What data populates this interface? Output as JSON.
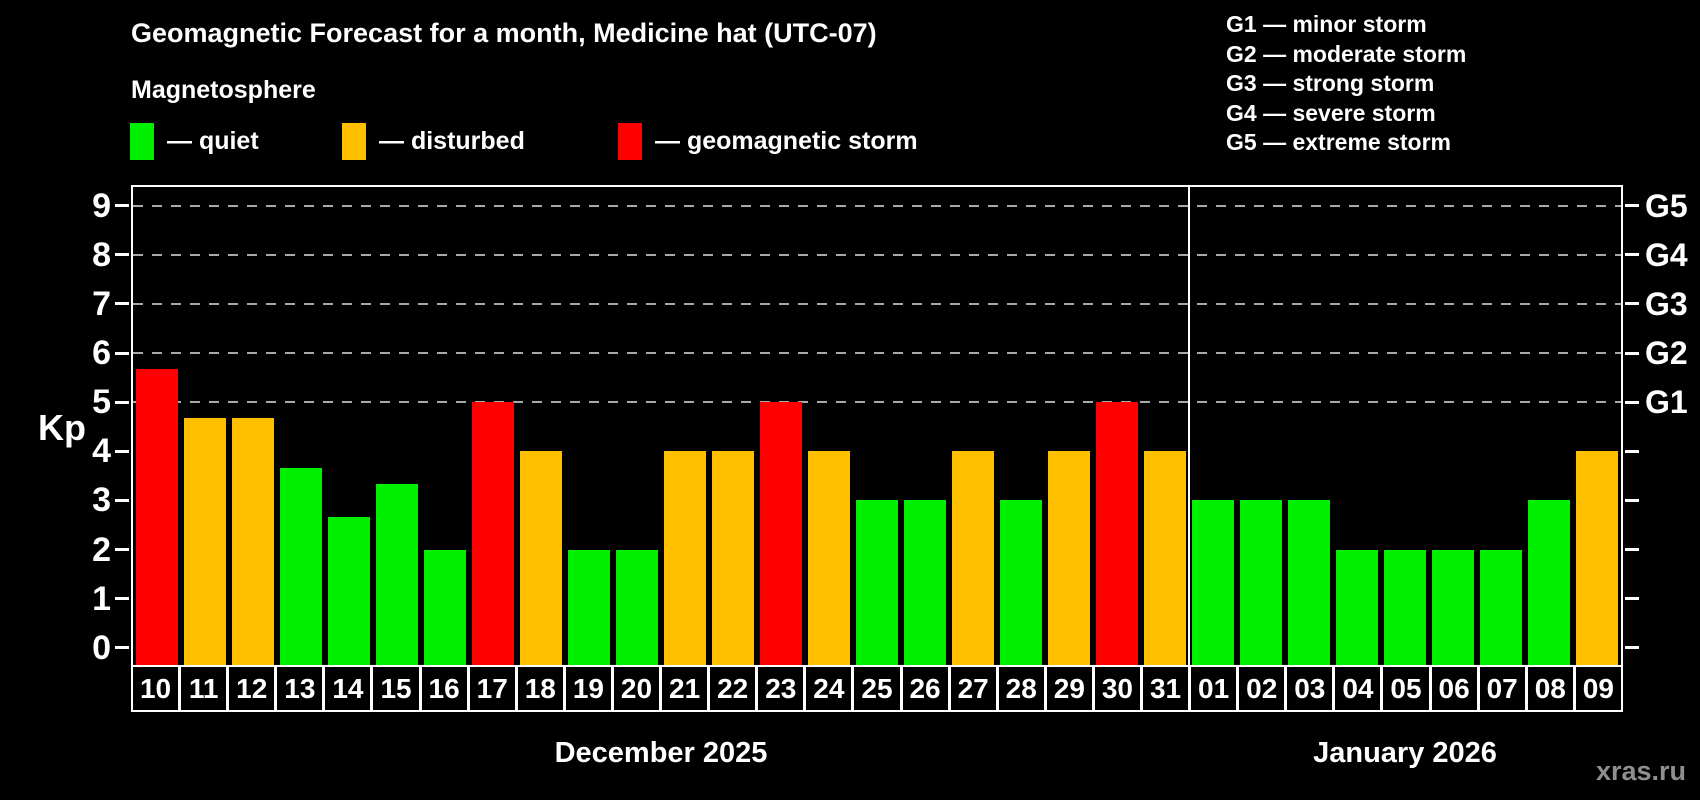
{
  "title": "Geomagnetic Forecast for a month, Medicine hat (UTC-07)",
  "subtitle": "Magnetosphere",
  "legend": {
    "items": [
      {
        "key": "quiet",
        "label": "— quiet",
        "color": "#00f000"
      },
      {
        "key": "disturbed",
        "label": "— disturbed",
        "color": "#ffc000"
      },
      {
        "key": "storm",
        "label": "— geomagnetic storm",
        "color": "#ff0000"
      }
    ]
  },
  "g_legend": {
    "items": [
      {
        "label": "G1 — minor storm"
      },
      {
        "label": "G2 — moderate storm"
      },
      {
        "label": "G3 — strong storm"
      },
      {
        "label": "G4 — severe storm"
      },
      {
        "label": "G5 — extreme storm"
      }
    ]
  },
  "chart_data": {
    "type": "bar",
    "ylabel": "Kp",
    "ylim": [
      -0.35,
      9.38
    ],
    "yticks": [
      0,
      1,
      2,
      3,
      4,
      5,
      6,
      7,
      8,
      9
    ],
    "gridlines_at": [
      5,
      6,
      7,
      8,
      9
    ],
    "grid_color": "#a8a8a8",
    "right_axis": [
      {
        "value": 5,
        "label": "G1"
      },
      {
        "value": 6,
        "label": "G2"
      },
      {
        "value": 7,
        "label": "G3"
      },
      {
        "value": 8,
        "label": "G4"
      },
      {
        "value": 9,
        "label": "G5"
      }
    ],
    "level_colors": {
      "quiet": "#00f000",
      "disturbed": "#ffc000",
      "storm": "#ff0000"
    },
    "months": [
      {
        "label": "December 2025",
        "days": [
          {
            "day": "10",
            "kp": 5.67,
            "level": "storm"
          },
          {
            "day": "11",
            "kp": 4.67,
            "level": "disturbed"
          },
          {
            "day": "12",
            "kp": 4.67,
            "level": "disturbed"
          },
          {
            "day": "13",
            "kp": 3.67,
            "level": "quiet"
          },
          {
            "day": "14",
            "kp": 2.67,
            "level": "quiet"
          },
          {
            "day": "15",
            "kp": 3.33,
            "level": "quiet"
          },
          {
            "day": "16",
            "kp": 2,
            "level": "quiet"
          },
          {
            "day": "17",
            "kp": 5,
            "level": "storm"
          },
          {
            "day": "18",
            "kp": 4,
            "level": "disturbed"
          },
          {
            "day": "19",
            "kp": 2,
            "level": "quiet"
          },
          {
            "day": "20",
            "kp": 2,
            "level": "quiet"
          },
          {
            "day": "21",
            "kp": 4,
            "level": "disturbed"
          },
          {
            "day": "22",
            "kp": 4,
            "level": "disturbed"
          },
          {
            "day": "23",
            "kp": 5,
            "level": "storm"
          },
          {
            "day": "24",
            "kp": 4,
            "level": "disturbed"
          },
          {
            "day": "25",
            "kp": 3,
            "level": "quiet"
          },
          {
            "day": "26",
            "kp": 3,
            "level": "quiet"
          },
          {
            "day": "27",
            "kp": 4,
            "level": "disturbed"
          },
          {
            "day": "28",
            "kp": 3,
            "level": "quiet"
          },
          {
            "day": "29",
            "kp": 4,
            "level": "disturbed"
          },
          {
            "day": "30",
            "kp": 5,
            "level": "storm"
          },
          {
            "day": "31",
            "kp": 4,
            "level": "disturbed"
          }
        ]
      },
      {
        "label": "January 2026",
        "days": [
          {
            "day": "01",
            "kp": 3,
            "level": "quiet"
          },
          {
            "day": "02",
            "kp": 3,
            "level": "quiet"
          },
          {
            "day": "03",
            "kp": 3,
            "level": "quiet"
          },
          {
            "day": "04",
            "kp": 2,
            "level": "quiet"
          },
          {
            "day": "05",
            "kp": 2,
            "level": "quiet"
          },
          {
            "day": "06",
            "kp": 2,
            "level": "quiet"
          },
          {
            "day": "07",
            "kp": 2,
            "level": "quiet"
          },
          {
            "day": "08",
            "kp": 3,
            "level": "quiet"
          },
          {
            "day": "09",
            "kp": 4,
            "level": "disturbed"
          }
        ]
      }
    ]
  },
  "watermark": "xras.ru"
}
